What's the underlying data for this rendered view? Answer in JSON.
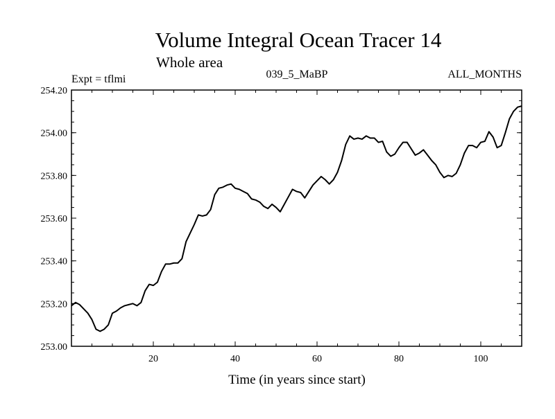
{
  "chart_data": {
    "type": "line",
    "title": "Volume Integral Ocean Tracer 14",
    "subtitle": "Whole area",
    "left_label": "Expt = tflmi",
    "center_label": "039_5_MaBP",
    "right_label": "ALL_MONTHS",
    "xlabel": "Time (in years since start)",
    "ylabel": "",
    "xlim": [
      0,
      110
    ],
    "ylim": [
      253.0,
      254.2
    ],
    "x_ticks": [
      20,
      40,
      60,
      80,
      100
    ],
    "x_tick_labels": [
      "20",
      "40",
      "60",
      "80",
      "100"
    ],
    "y_ticks": [
      253.0,
      253.2,
      253.4,
      253.6,
      253.8,
      254.0,
      254.2
    ],
    "y_tick_labels": [
      "253.00",
      "253.20",
      "253.40",
      "253.60",
      "253.80",
      "254.00",
      "254.20"
    ],
    "grid": false,
    "series": [
      {
        "name": "Volume Integral Ocean Tracer 14",
        "x": [
          0,
          1,
          2,
          3,
          4,
          5,
          6,
          7,
          8,
          9,
          10,
          11,
          12,
          13,
          14,
          15,
          16,
          17,
          18,
          19,
          20,
          21,
          22,
          23,
          24,
          25,
          26,
          27,
          28,
          29,
          30,
          31,
          32,
          33,
          34,
          35,
          36,
          37,
          38,
          39,
          40,
          41,
          42,
          43,
          44,
          45,
          46,
          47,
          48,
          49,
          50,
          51,
          52,
          53,
          54,
          55,
          56,
          57,
          58,
          59,
          60,
          61,
          62,
          63,
          64,
          65,
          66,
          67,
          68,
          69,
          70,
          71,
          72,
          73,
          74,
          75,
          76,
          77,
          78,
          79,
          80,
          81,
          82,
          83,
          84,
          85,
          86,
          87,
          88,
          89,
          90,
          91,
          92,
          93,
          94,
          95,
          96,
          97,
          98,
          99,
          100,
          101,
          102,
          103,
          104,
          105,
          106,
          107,
          108,
          109,
          110
        ],
        "values": [
          253.19,
          253.205,
          253.195,
          253.175,
          253.155,
          253.125,
          253.08,
          253.07,
          253.08,
          253.1,
          253.155,
          253.165,
          253.18,
          253.19,
          253.195,
          253.2,
          253.19,
          253.205,
          253.26,
          253.29,
          253.285,
          253.3,
          253.35,
          253.385,
          253.385,
          253.39,
          253.39,
          253.41,
          253.49,
          253.53,
          253.57,
          253.615,
          253.61,
          253.615,
          253.64,
          253.71,
          253.74,
          253.745,
          253.755,
          253.76,
          253.74,
          253.735,
          253.725,
          253.715,
          253.69,
          253.685,
          253.675,
          253.655,
          253.645,
          253.665,
          253.65,
          253.63,
          253.665,
          253.7,
          253.735,
          253.725,
          253.72,
          253.695,
          253.725,
          253.755,
          253.775,
          253.795,
          253.78,
          253.76,
          253.78,
          253.815,
          253.87,
          253.945,
          253.985,
          253.97,
          253.975,
          253.97,
          253.985,
          253.975,
          253.975,
          253.955,
          253.96,
          253.91,
          253.89,
          253.9,
          253.93,
          253.955,
          253.955,
          253.925,
          253.895,
          253.905,
          253.92,
          253.895,
          253.87,
          253.85,
          253.815,
          253.79,
          253.8,
          253.795,
          253.81,
          253.85,
          253.905,
          253.94,
          253.94,
          253.93,
          253.955,
          253.96,
          254.005,
          253.98,
          253.93,
          253.94,
          254.0,
          254.065,
          254.1,
          254.12,
          254.125
        ]
      }
    ]
  }
}
